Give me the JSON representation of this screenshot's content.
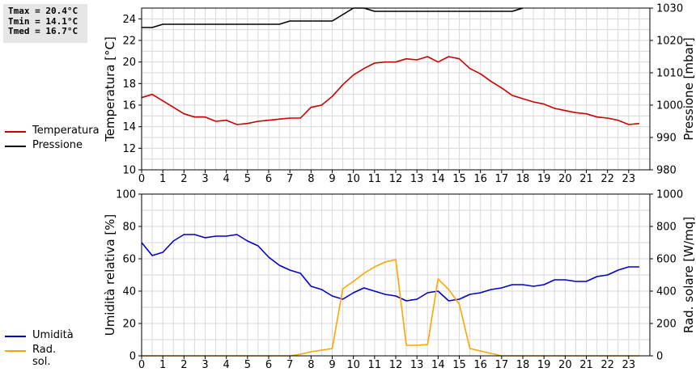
{
  "stats": {
    "tmax": "Tmax = 20.4°C",
    "tmin": "Tmin = 14.1°C",
    "tmed": "Tmed = 16.7°C"
  },
  "colors": {
    "temperatura": "#cc0000",
    "pressione": "#000000",
    "umidita": "#0000cc",
    "radsol": "#ffa500",
    "grid": "#d9d9d9"
  },
  "legend_top": [
    {
      "label": "Temperatura",
      "color": "#cc0000"
    },
    {
      "label": "Pressione",
      "color": "#000000"
    }
  ],
  "legend_bottom": [
    {
      "label": "Umidità",
      "color": "#0000cc"
    },
    {
      "label": "Rad. sol.",
      "color": "#ffa500"
    }
  ],
  "chart_data": [
    {
      "type": "line",
      "xlim": [
        0,
        24
      ],
      "x_ticks": [
        0,
        1,
        2,
        3,
        4,
        5,
        6,
        7,
        8,
        9,
        10,
        11,
        12,
        13,
        14,
        15,
        16,
        17,
        18,
        19,
        20,
        21,
        22,
        23
      ],
      "ylabel_left": "Temperatura [°C]",
      "ylabel_right": "Pressione [mbar]",
      "ylim_left": [
        10,
        25
      ],
      "yticks_left": [
        10,
        12,
        14,
        16,
        18,
        20,
        22,
        24
      ],
      "ylim_right": [
        980,
        1030
      ],
      "yticks_right": [
        980,
        990,
        1000,
        1010,
        1020,
        1030
      ],
      "grid": true,
      "series": [
        {
          "name": "Temperatura",
          "axis": "left",
          "color": "#cc0000",
          "points": [
            [
              0,
              16.7
            ],
            [
              0.5,
              17.0
            ],
            [
              1,
              16.4
            ],
            [
              1.5,
              15.8
            ],
            [
              2,
              15.2
            ],
            [
              2.5,
              14.9
            ],
            [
              3,
              14.9
            ],
            [
              3.5,
              14.5
            ],
            [
              4,
              14.6
            ],
            [
              4.5,
              14.2
            ],
            [
              5,
              14.3
            ],
            [
              5.5,
              14.5
            ],
            [
              6,
              14.6
            ],
            [
              6.5,
              14.7
            ],
            [
              7,
              14.8
            ],
            [
              7.5,
              14.8
            ],
            [
              8,
              15.8
            ],
            [
              8.5,
              16.0
            ],
            [
              9,
              16.8
            ],
            [
              9.5,
              17.9
            ],
            [
              10,
              18.8
            ],
            [
              10.5,
              19.4
            ],
            [
              11,
              19.9
            ],
            [
              11.5,
              20.0
            ],
            [
              12,
              20.0
            ],
            [
              12.5,
              20.3
            ],
            [
              13,
              20.2
            ],
            [
              13.5,
              20.5
            ],
            [
              14,
              20.0
            ],
            [
              14.5,
              20.5
            ],
            [
              15,
              20.3
            ],
            [
              15.5,
              19.4
            ],
            [
              16,
              18.9
            ],
            [
              16.5,
              18.2
            ],
            [
              17,
              17.6
            ],
            [
              17.5,
              16.9
            ],
            [
              18,
              16.6
            ],
            [
              18.5,
              16.3
            ],
            [
              19,
              16.1
            ],
            [
              19.5,
              15.7
            ],
            [
              20,
              15.5
            ],
            [
              20.5,
              15.3
            ],
            [
              21,
              15.2
            ],
            [
              21.5,
              14.9
            ],
            [
              22,
              14.8
            ],
            [
              22.5,
              14.6
            ],
            [
              23,
              14.2
            ],
            [
              23.5,
              14.3
            ]
          ]
        },
        {
          "name": "Pressione",
          "axis": "right",
          "color": "#000000",
          "points": [
            [
              0,
              1024
            ],
            [
              0.5,
              1024
            ],
            [
              1,
              1025
            ],
            [
              1.5,
              1025
            ],
            [
              2,
              1025
            ],
            [
              2.5,
              1025
            ],
            [
              3,
              1025
            ],
            [
              3.5,
              1025
            ],
            [
              4,
              1025
            ],
            [
              4.5,
              1025
            ],
            [
              5,
              1025
            ],
            [
              5.5,
              1025
            ],
            [
              6,
              1025
            ],
            [
              6.5,
              1025
            ],
            [
              7,
              1026
            ],
            [
              7.5,
              1026
            ],
            [
              8,
              1026
            ],
            [
              8.5,
              1026
            ],
            [
              9,
              1026
            ],
            [
              9.5,
              1028
            ],
            [
              10,
              1030
            ],
            [
              10.5,
              1030
            ],
            [
              11,
              1029
            ],
            [
              11.5,
              1029
            ],
            [
              12,
              1029
            ],
            [
              12.5,
              1029
            ],
            [
              13,
              1029
            ],
            [
              13.5,
              1029
            ],
            [
              14,
              1029
            ],
            [
              14.5,
              1029
            ],
            [
              15,
              1029
            ],
            [
              15.5,
              1029
            ],
            [
              16,
              1029
            ],
            [
              16.5,
              1029
            ],
            [
              17,
              1029
            ],
            [
              17.5,
              1029
            ],
            [
              18,
              1030
            ]
          ]
        }
      ]
    },
    {
      "type": "line",
      "xlim": [
        0,
        24
      ],
      "x_ticks": [
        0,
        1,
        2,
        3,
        4,
        5,
        6,
        7,
        8,
        9,
        10,
        11,
        12,
        13,
        14,
        15,
        16,
        17,
        18,
        19,
        20,
        21,
        22,
        23
      ],
      "ylabel_left": "Umidità relativa [%]",
      "ylabel_right": "Rad. solare [W/mq]",
      "ylim_left": [
        0,
        100
      ],
      "yticks_left": [
        0,
        20,
        40,
        60,
        80,
        100
      ],
      "ylim_right": [
        0,
        1000
      ],
      "yticks_right": [
        0,
        200,
        400,
        600,
        800,
        1000
      ],
      "grid": true,
      "series": [
        {
          "name": "Umidità",
          "axis": "left",
          "color": "#0000cc",
          "points": [
            [
              0,
              70
            ],
            [
              0.5,
              62
            ],
            [
              1,
              64
            ],
            [
              1.5,
              71
            ],
            [
              2,
              75
            ],
            [
              2.5,
              75
            ],
            [
              3,
              73
            ],
            [
              3.5,
              74
            ],
            [
              4,
              74
            ],
            [
              4.5,
              75
            ],
            [
              5,
              71
            ],
            [
              5.5,
              68
            ],
            [
              6,
              61
            ],
            [
              6.5,
              56
            ],
            [
              7,
              53
            ],
            [
              7.5,
              51
            ],
            [
              8,
              43
            ],
            [
              8.5,
              41
            ],
            [
              9,
              37
            ],
            [
              9.5,
              35
            ],
            [
              10,
              39
            ],
            [
              10.5,
              42
            ],
            [
              11,
              40
            ],
            [
              11.5,
              38
            ],
            [
              12,
              37
            ],
            [
              12.5,
              34
            ],
            [
              13,
              35
            ],
            [
              13.5,
              39
            ],
            [
              14,
              40
            ],
            [
              14.5,
              34
            ],
            [
              15,
              35
            ],
            [
              15.5,
              38
            ],
            [
              16,
              39
            ],
            [
              16.5,
              41
            ],
            [
              17,
              42
            ],
            [
              17.5,
              44
            ],
            [
              18,
              44
            ],
            [
              18.5,
              43
            ],
            [
              19,
              44
            ],
            [
              19.5,
              47
            ],
            [
              20,
              47
            ],
            [
              20.5,
              46
            ],
            [
              21,
              46
            ],
            [
              21.5,
              49
            ],
            [
              22,
              50
            ],
            [
              22.5,
              53
            ],
            [
              23,
              55
            ],
            [
              23.5,
              55
            ]
          ]
        },
        {
          "name": "Rad. sol.",
          "axis": "right",
          "color": "#ffa500",
          "points": [
            [
              0,
              0
            ],
            [
              7,
              0
            ],
            [
              7.5,
              10
            ],
            [
              8,
              25
            ],
            [
              9,
              45
            ],
            [
              9.5,
              415
            ],
            [
              10,
              460
            ],
            [
              10.5,
              510
            ],
            [
              11,
              550
            ],
            [
              11.5,
              580
            ],
            [
              12,
              595
            ],
            [
              12.5,
              65
            ],
            [
              13,
              65
            ],
            [
              13.5,
              70
            ],
            [
              14,
              475
            ],
            [
              14.5,
              410
            ],
            [
              15,
              320
            ],
            [
              15.5,
              45
            ],
            [
              16,
              30
            ],
            [
              17,
              0
            ],
            [
              23.5,
              0
            ]
          ]
        }
      ]
    }
  ]
}
